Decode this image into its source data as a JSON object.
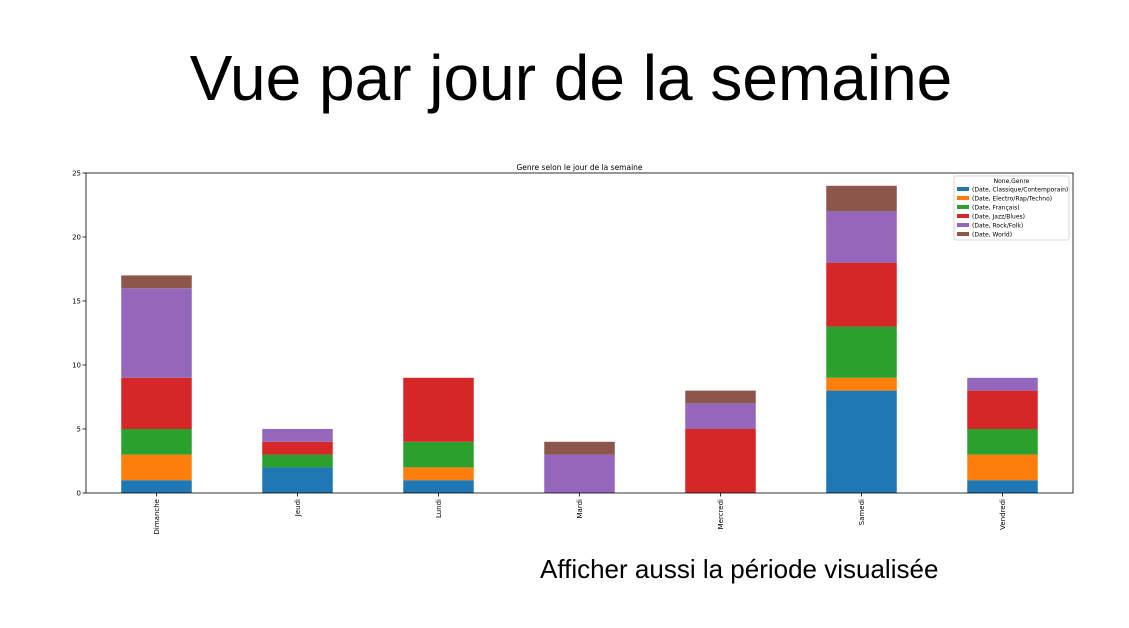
{
  "slide": {
    "title": "Vue par jour de la semaine",
    "footnote": "Afficher aussi la période visualisée"
  },
  "chart_data": {
    "type": "bar",
    "stacked": true,
    "title": "Genre selon le jour de la semaine",
    "xlabel": "",
    "ylabel": "",
    "ylim": [
      0,
      25
    ],
    "yticks": [
      0,
      5,
      10,
      15,
      20,
      25
    ],
    "grid": false,
    "legend_title": "None,Genre",
    "legend_position": "top-right",
    "categories": [
      "Dimanche",
      "Jeudi",
      "Lundi",
      "Mardi",
      "Mercredi",
      "Samedi",
      "Vendredi"
    ],
    "series": [
      {
        "name": "(Date, Classique/Contemporain)",
        "color": "#1f77b4",
        "values": [
          1,
          2,
          1,
          0,
          0,
          8,
          1
        ]
      },
      {
        "name": "(Date, Electro/Rap/Techno)",
        "color": "#ff7f0e",
        "values": [
          2,
          0,
          1,
          0,
          0,
          1,
          2
        ]
      },
      {
        "name": "(Date, Français)",
        "color": "#2ca02c",
        "values": [
          2,
          1,
          2,
          0,
          0,
          4,
          2
        ]
      },
      {
        "name": "(Date, Jazz/Blues)",
        "color": "#d62728",
        "values": [
          4,
          1,
          5,
          0,
          5,
          5,
          3
        ]
      },
      {
        "name": "(Date, Rock/Folk)",
        "color": "#9467bd",
        "values": [
          7,
          1,
          0,
          3,
          2,
          4,
          1
        ]
      },
      {
        "name": "(Date, World)",
        "color": "#8c564b",
        "values": [
          1,
          0,
          0,
          1,
          1,
          2,
          0
        ]
      }
    ]
  }
}
